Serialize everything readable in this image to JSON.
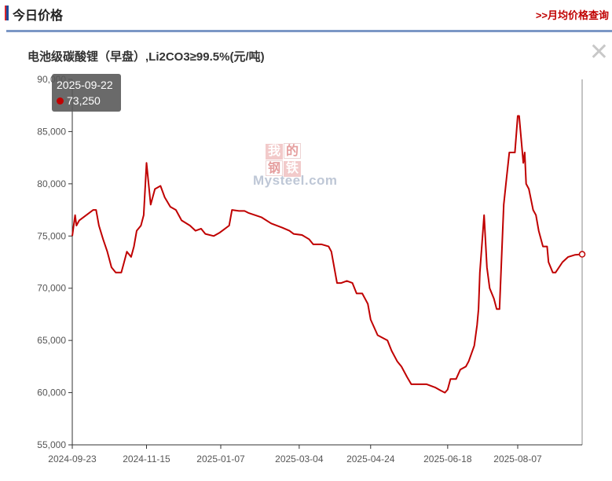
{
  "header": {
    "title": "今日价格",
    "link_label": ">>月均价格查询"
  },
  "chart_title": "电池级碳酸锂（早盘）,Li2CO3≥99.5%(元/吨)",
  "close_label": "✕",
  "watermark": {
    "cn": [
      "我",
      "的",
      "钢",
      "铁"
    ],
    "en": "Mysteel.com"
  },
  "tooltip": {
    "date": "2025-09-22",
    "value": "73,250"
  },
  "colors": {
    "line": "#c00000",
    "accent": "#d8262c",
    "header_rule": "#7b97c5"
  },
  "chart_data": {
    "type": "line",
    "title": "电池级碳酸锂（早盘）,Li2CO3≥99.5%(元/吨)",
    "xlabel": "",
    "ylabel": "",
    "ylim": [
      55000,
      90000
    ],
    "y_ticks": [
      "55,000",
      "60,000",
      "65,000",
      "70,000",
      "75,000",
      "80,000",
      "85,000",
      "90,000"
    ],
    "x_ticks": [
      "2024-09-23",
      "2024-11-15",
      "2025-01-07",
      "2025-03-04",
      "2025-04-24",
      "2025-06-18",
      "2025-08-07"
    ],
    "grid": false,
    "legend": "none",
    "series": [
      {
        "values": [
          [
            "2024-09-23",
            75000
          ],
          [
            "2024-09-25",
            77000
          ],
          [
            "2024-09-26",
            76000
          ],
          [
            "2024-09-28",
            76500
          ],
          [
            "2024-10-08",
            77500
          ],
          [
            "2024-10-10",
            77500
          ],
          [
            "2024-10-12",
            76000
          ],
          [
            "2024-10-15",
            74700
          ],
          [
            "2024-10-18",
            73500
          ],
          [
            "2024-10-21",
            72000
          ],
          [
            "2024-10-24",
            71500
          ],
          [
            "2024-10-28",
            71500
          ],
          [
            "2024-10-30",
            72500
          ],
          [
            "2024-11-01",
            73500
          ],
          [
            "2024-11-04",
            73000
          ],
          [
            "2024-11-06",
            74000
          ],
          [
            "2024-11-08",
            75500
          ],
          [
            "2024-11-11",
            76000
          ],
          [
            "2024-11-13",
            77000
          ],
          [
            "2024-11-15",
            82000
          ],
          [
            "2024-11-18",
            78000
          ],
          [
            "2024-11-21",
            79500
          ],
          [
            "2024-11-25",
            79800
          ],
          [
            "2024-11-28",
            78700
          ],
          [
            "2024-12-02",
            77800
          ],
          [
            "2024-12-06",
            77500
          ],
          [
            "2024-12-10",
            76500
          ],
          [
            "2024-12-16",
            76000
          ],
          [
            "2024-12-20",
            75500
          ],
          [
            "2024-12-24",
            75700
          ],
          [
            "2024-12-27",
            75200
          ],
          [
            "2025-01-02",
            75000
          ],
          [
            "2025-01-06",
            75300
          ],
          [
            "2025-01-09",
            75600
          ],
          [
            "2025-01-13",
            76000
          ],
          [
            "2025-01-15",
            77500
          ],
          [
            "2025-01-20",
            77400
          ],
          [
            "2025-01-24",
            77400
          ],
          [
            "2025-01-27",
            77200
          ],
          [
            "2025-02-05",
            76800
          ],
          [
            "2025-02-12",
            76200
          ],
          [
            "2025-02-20",
            75800
          ],
          [
            "2025-02-25",
            75500
          ],
          [
            "2025-02-28",
            75200
          ],
          [
            "2025-03-06",
            75100
          ],
          [
            "2025-03-11",
            74700
          ],
          [
            "2025-03-14",
            74200
          ],
          [
            "2025-03-20",
            74200
          ],
          [
            "2025-03-25",
            74000
          ],
          [
            "2025-03-27",
            73500
          ],
          [
            "2025-03-31",
            70500
          ],
          [
            "2025-04-03",
            70500
          ],
          [
            "2025-04-07",
            70700
          ],
          [
            "2025-04-11",
            70500
          ],
          [
            "2025-04-14",
            69500
          ],
          [
            "2025-04-18",
            69500
          ],
          [
            "2025-04-22",
            68500
          ],
          [
            "2025-04-24",
            67000
          ],
          [
            "2025-04-29",
            65500
          ],
          [
            "2025-05-06",
            65000
          ],
          [
            "2025-05-09",
            64000
          ],
          [
            "2025-05-13",
            63000
          ],
          [
            "2025-05-16",
            62500
          ],
          [
            "2025-05-20",
            61500
          ],
          [
            "2025-05-23",
            60800
          ],
          [
            "2025-06-03",
            60800
          ],
          [
            "2025-06-09",
            60500
          ],
          [
            "2025-06-13",
            60200
          ],
          [
            "2025-06-16",
            60000
          ],
          [
            "2025-06-18",
            60300
          ],
          [
            "2025-06-20",
            61300
          ],
          [
            "2025-06-24",
            61300
          ],
          [
            "2025-06-27",
            62200
          ],
          [
            "2025-07-01",
            62500
          ],
          [
            "2025-07-03",
            63000
          ],
          [
            "2025-07-07",
            64500
          ],
          [
            "2025-07-09",
            66500
          ],
          [
            "2025-07-10",
            68000
          ],
          [
            "2025-07-11",
            71500
          ],
          [
            "2025-07-14",
            77000
          ],
          [
            "2025-07-16",
            72000
          ],
          [
            "2025-07-18",
            70000
          ],
          [
            "2025-07-21",
            69000
          ],
          [
            "2025-07-23",
            68000
          ],
          [
            "2025-07-25",
            68000
          ],
          [
            "2025-07-28",
            78000
          ],
          [
            "2025-07-30",
            80500
          ],
          [
            "2025-08-01",
            83000
          ],
          [
            "2025-08-05",
            83000
          ],
          [
            "2025-08-07",
            86500
          ],
          [
            "2025-08-08",
            86500
          ],
          [
            "2025-08-11",
            82000
          ],
          [
            "2025-08-12",
            83000
          ],
          [
            "2025-08-13",
            80000
          ],
          [
            "2025-08-15",
            79500
          ],
          [
            "2025-08-18",
            77500
          ],
          [
            "2025-08-20",
            77000
          ],
          [
            "2025-08-22",
            75500
          ],
          [
            "2025-08-25",
            74000
          ],
          [
            "2025-08-28",
            74000
          ],
          [
            "2025-08-29",
            72500
          ],
          [
            "2025-09-01",
            71500
          ],
          [
            "2025-09-03",
            71500
          ],
          [
            "2025-09-08",
            72500
          ],
          [
            "2025-09-12",
            73000
          ],
          [
            "2025-09-17",
            73200
          ],
          [
            "2025-09-22",
            73250
          ]
        ]
      }
    ]
  }
}
